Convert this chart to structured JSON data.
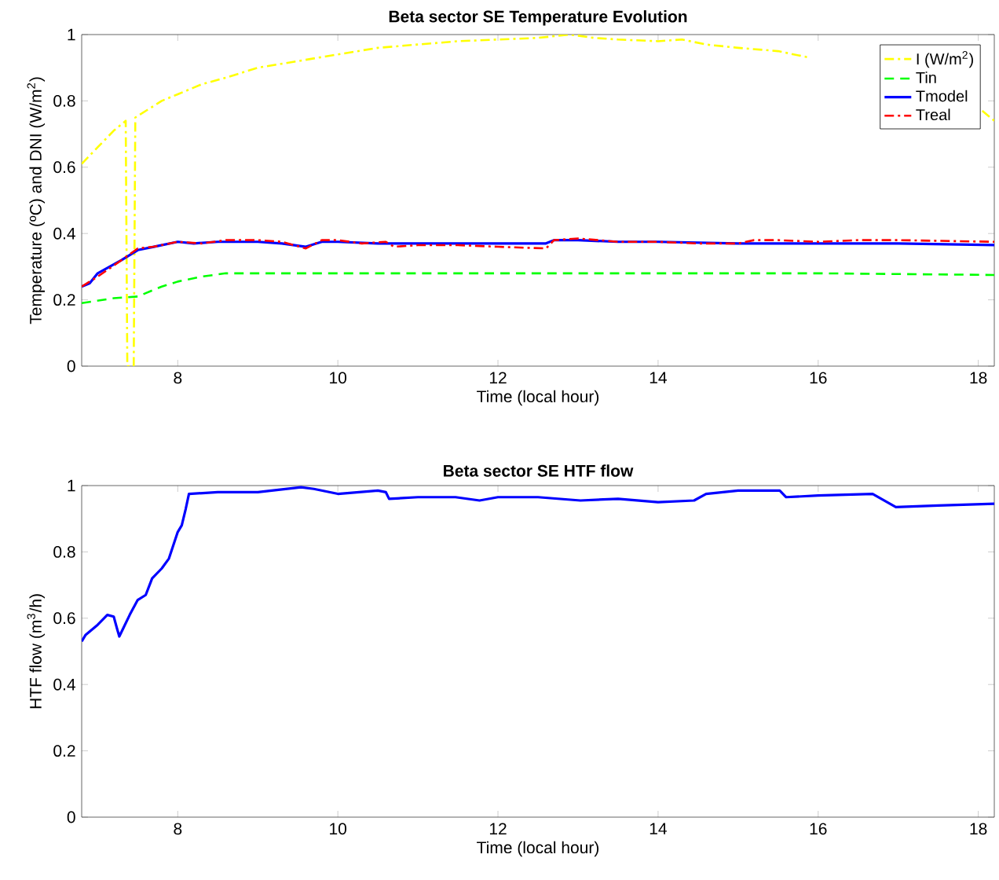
{
  "chart_data": [
    {
      "type": "line",
      "title": "Beta sector SE Temperature Evolution",
      "xlabel": "Time (local hour)",
      "ylabel": "Temperature (ºC) and DNI (W/m$^{2}$)",
      "xlim": [
        6.8,
        18.2
      ],
      "ylim": [
        0,
        1
      ],
      "xticks": [
        8,
        10,
        12,
        14,
        16,
        18
      ],
      "yticks": [
        0,
        0.2,
        0.4,
        0.6,
        0.8,
        1
      ],
      "legend": "top right",
      "series": [
        {
          "name": "I (W/m$^{2}$)",
          "color": "#ffff00",
          "line_style": "dashdot",
          "x": [
            6.8,
            7.0,
            7.2,
            7.35,
            7.37,
            7.45,
            7.47,
            7.8,
            8.0,
            8.3,
            8.6,
            9.0,
            9.5,
            10.0,
            10.5,
            11.0,
            11.5,
            12.0,
            12.5,
            12.9,
            13.2,
            13.5,
            14.0,
            14.3,
            14.6,
            15.0,
            15.5,
            15.9,
            16.5,
            17.5,
            18.05,
            18.2
          ],
          "values": [
            0.61,
            0.66,
            0.71,
            0.74,
            0.0,
            0.0,
            0.75,
            0.8,
            0.82,
            0.85,
            0.87,
            0.9,
            0.92,
            0.94,
            0.96,
            0.97,
            0.98,
            0.985,
            0.99,
            1.0,
            0.99,
            0.985,
            0.98,
            0.985,
            0.97,
            0.96,
            0.95,
            0.93,
            null,
            null,
            0.77,
            0.74
          ]
        },
        {
          "name": "Tin",
          "color": "#00ff00",
          "line_style": "dashed",
          "x": [
            6.8,
            7.2,
            7.5,
            7.8,
            8.0,
            8.3,
            8.6,
            9.0,
            10.0,
            12.0,
            14.0,
            16.0,
            18.2
          ],
          "values": [
            0.19,
            0.205,
            0.21,
            0.24,
            0.255,
            0.27,
            0.28,
            0.28,
            0.28,
            0.28,
            0.28,
            0.28,
            0.275
          ]
        },
        {
          "name": "Tmodel",
          "color": "#0000ff",
          "line_style": "solid",
          "x": [
            6.8,
            6.9,
            7.0,
            7.3,
            7.5,
            7.7,
            8.0,
            8.2,
            8.5,
            9.0,
            9.3,
            9.6,
            9.8,
            10.0,
            10.5,
            11.0,
            12.0,
            12.6,
            12.7,
            13.0,
            13.5,
            14.0,
            15.0,
            16.0,
            17.0,
            18.2
          ],
          "values": [
            0.24,
            0.25,
            0.28,
            0.32,
            0.35,
            0.36,
            0.375,
            0.37,
            0.375,
            0.375,
            0.37,
            0.36,
            0.375,
            0.375,
            0.37,
            0.37,
            0.37,
            0.37,
            0.38,
            0.38,
            0.375,
            0.375,
            0.37,
            0.37,
            0.37,
            0.365
          ]
        },
        {
          "name": "Treal",
          "color": "#ff0000",
          "line_style": "dashdot",
          "x": [
            6.8,
            7.0,
            7.3,
            7.5,
            7.7,
            8.0,
            8.3,
            8.6,
            9.0,
            9.3,
            9.6,
            9.8,
            10.0,
            10.3,
            10.6,
            10.7,
            11.0,
            11.5,
            12.0,
            12.6,
            12.7,
            13.0,
            13.5,
            14.0,
            14.5,
            15.0,
            15.2,
            15.5,
            16.0,
            16.5,
            17.0,
            18.2
          ],
          "values": [
            0.24,
            0.27,
            0.32,
            0.355,
            0.36,
            0.375,
            0.37,
            0.38,
            0.38,
            0.375,
            0.355,
            0.38,
            0.38,
            0.37,
            0.375,
            0.36,
            0.365,
            0.365,
            0.36,
            0.355,
            0.38,
            0.385,
            0.375,
            0.375,
            0.37,
            0.37,
            0.38,
            0.38,
            0.375,
            0.38,
            0.38,
            0.375
          ]
        }
      ]
    },
    {
      "type": "line",
      "title": "Beta sector SE HTF flow",
      "xlabel": "Time (local hour)",
      "ylabel": "HTF flow (m$^{3}$/h)",
      "xlim": [
        6.8,
        18.2
      ],
      "ylim": [
        0,
        1
      ],
      "xticks": [
        8,
        10,
        12,
        14,
        16,
        18
      ],
      "yticks": [
        0,
        0.2,
        0.4,
        0.6,
        0.8,
        1
      ],
      "series": [
        {
          "color": "#0000ff",
          "line_style": "solid",
          "x": [
            6.8,
            6.85,
            7.0,
            7.12,
            7.2,
            7.24,
            7.27,
            7.32,
            7.4,
            7.5,
            7.6,
            7.68,
            7.8,
            7.89,
            8.0,
            8.05,
            8.1,
            8.14,
            8.5,
            9.0,
            9.54,
            9.7,
            10.0,
            10.5,
            10.6,
            10.64,
            11.0,
            11.47,
            11.77,
            12.0,
            12.5,
            13.03,
            13.5,
            14.0,
            14.45,
            14.6,
            15.0,
            15.52,
            15.6,
            16.0,
            16.68,
            16.97,
            17.5,
            18.2
          ],
          "values": [
            0.53,
            0.55,
            0.58,
            0.61,
            0.605,
            0.57,
            0.545,
            0.57,
            0.61,
            0.655,
            0.67,
            0.72,
            0.75,
            0.78,
            0.86,
            0.88,
            0.93,
            0.975,
            0.98,
            0.98,
            0.995,
            0.99,
            0.975,
            0.985,
            0.98,
            0.96,
            0.965,
            0.965,
            0.955,
            0.965,
            0.965,
            0.955,
            0.96,
            0.95,
            0.955,
            0.975,
            0.985,
            0.985,
            0.965,
            0.97,
            0.975,
            0.935,
            0.94,
            0.945
          ]
        }
      ]
    }
  ]
}
